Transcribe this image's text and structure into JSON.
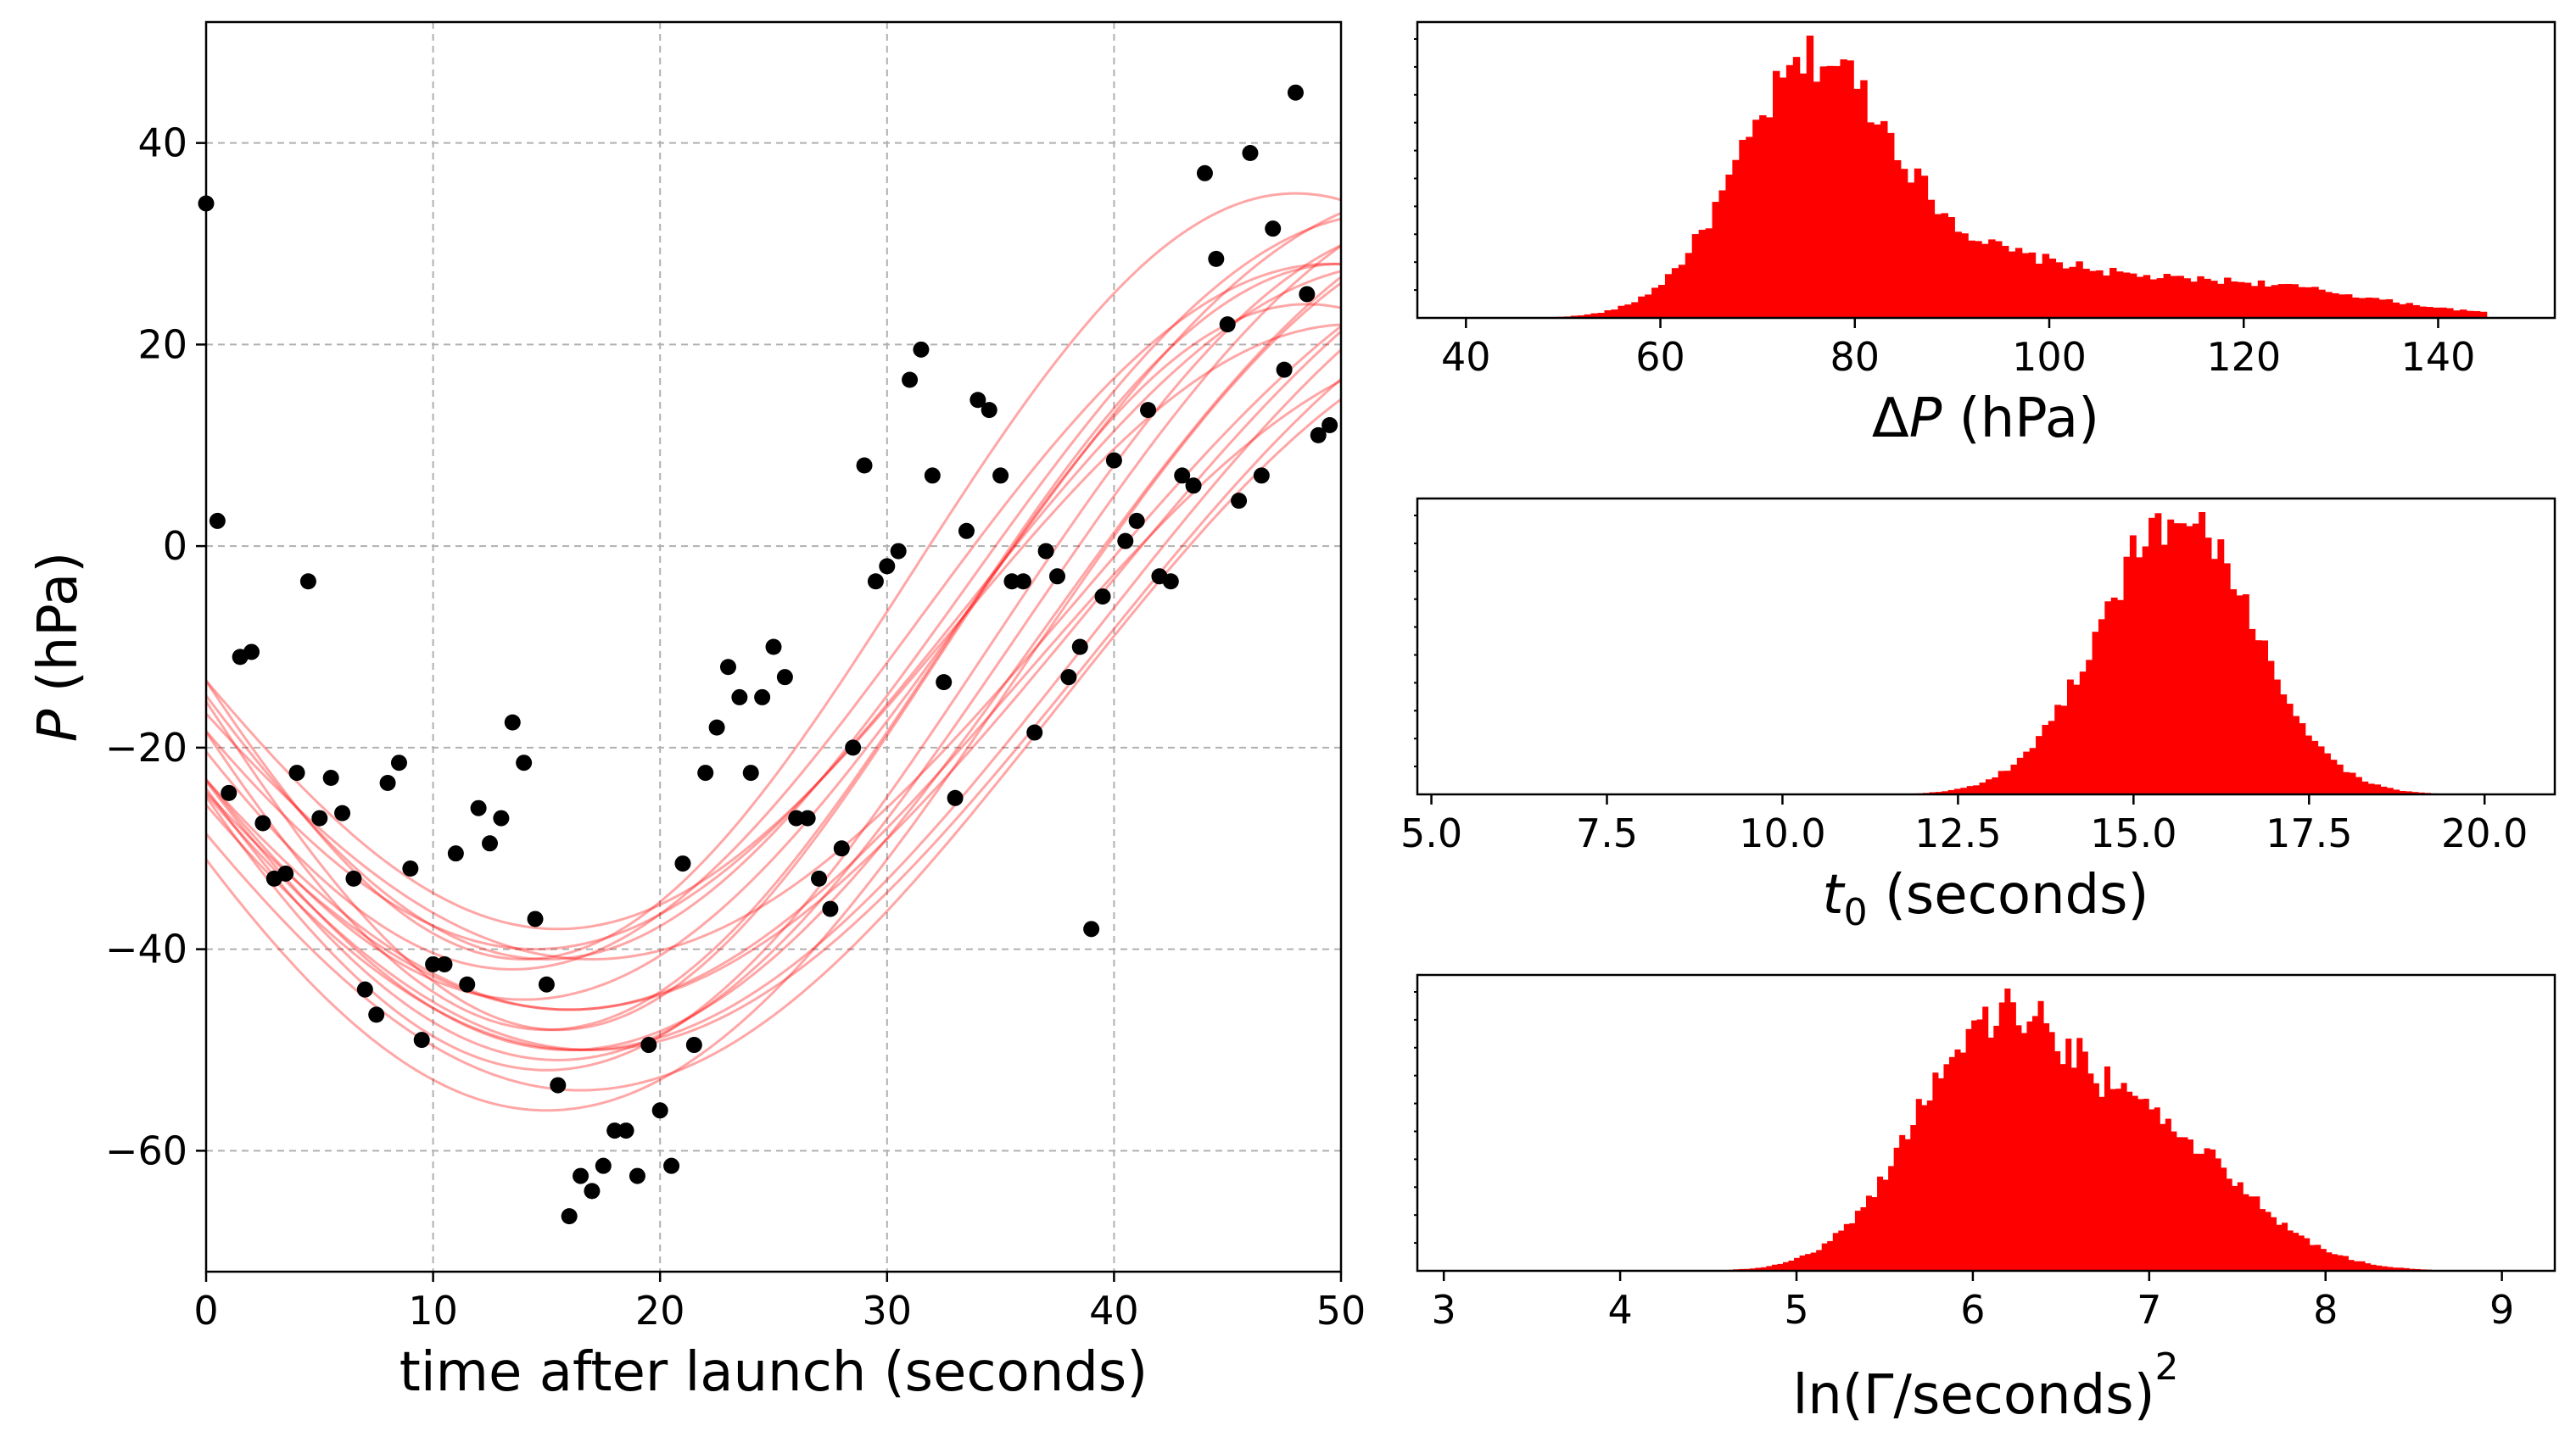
{
  "chart_data": [
    {
      "id": "main",
      "type": "scatter",
      "xlabel": "time after launch (seconds)",
      "ylabel_italic": "P",
      "ylabel_rest": " (hPa)",
      "xlim": [
        0,
        50
      ],
      "ylim": [
        -72,
        52
      ],
      "xticks": [
        0,
        10,
        20,
        30,
        40,
        50
      ],
      "xtick_labels": [
        "0",
        "10",
        "20",
        "30",
        "40",
        "50"
      ],
      "yticks": [
        -60,
        -40,
        -20,
        0,
        20,
        40
      ],
      "ytick_labels": [
        "−60",
        "−40",
        "−20",
        "0",
        "20",
        "40"
      ],
      "grid": true,
      "points": [
        [
          0,
          34
        ],
        [
          0.5,
          2.5
        ],
        [
          1,
          -24.5
        ],
        [
          1.5,
          -11
        ],
        [
          2,
          -10.5
        ],
        [
          2.5,
          -27.5
        ],
        [
          3,
          -33
        ],
        [
          3.5,
          -32.5
        ],
        [
          4,
          -22.5
        ],
        [
          4.5,
          -3.5
        ],
        [
          5,
          -27
        ],
        [
          5.5,
          -23
        ],
        [
          6,
          -26.5
        ],
        [
          6.5,
          -33
        ],
        [
          7,
          -44
        ],
        [
          7.5,
          -46.5
        ],
        [
          8,
          -23.5
        ],
        [
          8.5,
          -21.5
        ],
        [
          9,
          -32
        ],
        [
          9.5,
          -49
        ],
        [
          10,
          -41.5
        ],
        [
          10.5,
          -41.5
        ],
        [
          11,
          -30.5
        ],
        [
          11.5,
          -43.5
        ],
        [
          12,
          -26
        ],
        [
          12.5,
          -29.5
        ],
        [
          13,
          -27
        ],
        [
          13.5,
          -17.5
        ],
        [
          14,
          -21.5
        ],
        [
          14.5,
          -37
        ],
        [
          15,
          -43.5
        ],
        [
          15.5,
          -53.5
        ],
        [
          16,
          -66.5
        ],
        [
          16.5,
          -62.5
        ],
        [
          17,
          -64
        ],
        [
          17.5,
          -61.5
        ],
        [
          18,
          -58
        ],
        [
          18.5,
          -58
        ],
        [
          19,
          -62.5
        ],
        [
          19.5,
          -49.5
        ],
        [
          20,
          -56
        ],
        [
          20.5,
          -61.5
        ],
        [
          21,
          -31.5
        ],
        [
          21.5,
          -49.5
        ],
        [
          22,
          -22.5
        ],
        [
          22.5,
          -18
        ],
        [
          23,
          -12
        ],
        [
          23.5,
          -15
        ],
        [
          24,
          -22.5
        ],
        [
          24.5,
          -15
        ],
        [
          25,
          -10
        ],
        [
          25.5,
          -13
        ],
        [
          26,
          -27
        ],
        [
          26.5,
          -27
        ],
        [
          27,
          -33
        ],
        [
          27.5,
          -36
        ],
        [
          28,
          -30
        ],
        [
          28.5,
          -20
        ],
        [
          29,
          8
        ],
        [
          29.5,
          -3.5
        ],
        [
          30,
          -2
        ],
        [
          30.5,
          -0.5
        ],
        [
          31,
          16.5
        ],
        [
          31.5,
          19.5
        ],
        [
          32,
          7
        ],
        [
          32.5,
          -13.5
        ],
        [
          33,
          -25
        ],
        [
          33.5,
          1.5
        ],
        [
          34,
          14.5
        ],
        [
          34.5,
          13.5
        ],
        [
          35,
          7
        ],
        [
          35.5,
          -3.5
        ],
        [
          36,
          -3.5
        ],
        [
          36.5,
          -18.5
        ],
        [
          37,
          -0.5
        ],
        [
          37.5,
          -3
        ],
        [
          38,
          -13
        ],
        [
          38.5,
          -10
        ],
        [
          39,
          -38
        ],
        [
          39.5,
          -5
        ],
        [
          40,
          8.5
        ],
        [
          40.5,
          0.5
        ],
        [
          41,
          2.5
        ],
        [
          41.5,
          13.5
        ],
        [
          42,
          -3
        ],
        [
          42.5,
          -3.5
        ],
        [
          43,
          7
        ],
        [
          43.5,
          6
        ],
        [
          44,
          37
        ],
        [
          44.5,
          28.5
        ],
        [
          45,
          22
        ],
        [
          45.5,
          4.5
        ],
        [
          46,
          39
        ],
        [
          46.5,
          7
        ],
        [
          47,
          31.5
        ],
        [
          47.5,
          17.5
        ],
        [
          48,
          45
        ],
        [
          48.5,
          25
        ],
        [
          49,
          11
        ],
        [
          49.5,
          12
        ]
      ],
      "model_curves": [
        {
          "offset": -5,
          "amplitude": 40,
          "t0": 14,
          "width": 40
        },
        {
          "offset": -10,
          "amplitude": 38,
          "t0": 15,
          "width": 35
        },
        {
          "offset": -8,
          "amplitude": 42,
          "t0": 16,
          "width": 42
        },
        {
          "offset": -12,
          "amplitude": 36,
          "t0": 15.5,
          "width": 33
        },
        {
          "offset": -6,
          "amplitude": 34,
          "t0": 14.5,
          "width": 38
        },
        {
          "offset": -9,
          "amplitude": 41,
          "t0": 16.5,
          "width": 45
        },
        {
          "offset": -4,
          "amplitude": 37,
          "t0": 15,
          "width": 37
        },
        {
          "offset": -11,
          "amplitude": 39,
          "t0": 17,
          "width": 44
        },
        {
          "offset": -7,
          "amplitude": 35,
          "t0": 13.5,
          "width": 36
        },
        {
          "offset": -8,
          "amplitude": 43,
          "t0": 15.5,
          "width": 41
        },
        {
          "offset": -13,
          "amplitude": 33,
          "t0": 16,
          "width": 40
        },
        {
          "offset": -3,
          "amplitude": 38,
          "t0": 14,
          "width": 34
        },
        {
          "offset": -6,
          "amplitude": 40,
          "t0": 16,
          "width": 46
        },
        {
          "offset": -10,
          "amplitude": 42,
          "t0": 15,
          "width": 39
        },
        {
          "offset": -5,
          "amplitude": 36,
          "t0": 17,
          "width": 43
        },
        {
          "offset": -12,
          "amplitude": 44,
          "t0": 15,
          "width": 42
        },
        {
          "offset": -8,
          "amplitude": 30,
          "t0": 15.5,
          "width": 35
        },
        {
          "offset": -16,
          "amplitude": 38,
          "t0": 16.5,
          "width": 42
        }
      ],
      "point_color": "#000000",
      "curve_color": "#ff0000"
    },
    {
      "id": "hist_dP",
      "type": "histogram",
      "xlabel_prefix": "Δ",
      "xlabel_italic": "P",
      "xlabel_rest": " (hPa)",
      "xlim": [
        35,
        152
      ],
      "xticks": [
        40,
        60,
        80,
        100,
        120,
        140
      ],
      "xtick_labels": [
        "40",
        "60",
        "80",
        "100",
        "120",
        "140"
      ],
      "range": [
        48,
        145
      ],
      "components": [
        {
          "mu": 76,
          "sigma": 8,
          "weight": 1.0
        },
        {
          "mu": 95,
          "sigma": 9,
          "weight": 0.18
        },
        {
          "mu": 118,
          "sigma": 14,
          "weight": 0.14
        }
      ],
      "color": "#ff0000"
    },
    {
      "id": "hist_t0",
      "type": "histogram",
      "xlabel_italic": "t",
      "xlabel_sub": "0",
      "xlabel_rest": " (seconds)",
      "xlim": [
        4.8,
        21
      ],
      "xticks": [
        5.0,
        7.5,
        10.0,
        12.5,
        15.0,
        17.5,
        20.0
      ],
      "xtick_labels": [
        "5.0",
        "7.5",
        "10.0",
        "12.5",
        "15.0",
        "17.5",
        "20.0"
      ],
      "range": [
        7,
        19.5
      ],
      "components": [
        {
          "mu": 15.6,
          "sigma": 1.1,
          "weight": 1.0
        }
      ],
      "color": "#ff0000"
    },
    {
      "id": "hist_lnGamma",
      "type": "histogram",
      "xlabel_main": "ln(Γ/seconds)",
      "xlabel_sup": "2",
      "xlim": [
        2.85,
        9.3
      ],
      "xticks": [
        3,
        4,
        5,
        6,
        7,
        8,
        9
      ],
      "xtick_labels": [
        "3",
        "4",
        "5",
        "6",
        "7",
        "8",
        "9"
      ],
      "range": [
        4.2,
        8.6
      ],
      "components": [
        {
          "mu": 6.1,
          "sigma": 0.45,
          "weight": 1.0
        },
        {
          "mu": 7.05,
          "sigma": 0.5,
          "weight": 0.55
        }
      ],
      "color": "#ff0000"
    }
  ]
}
